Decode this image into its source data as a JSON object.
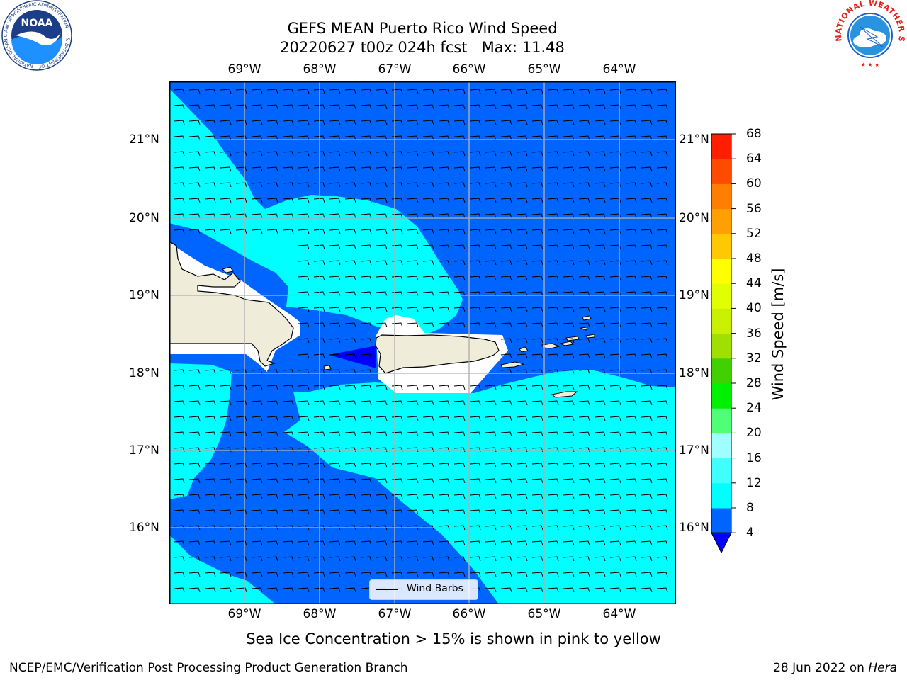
{
  "title": {
    "line1": "GEFS MEAN Puerto Rico Wind Speed",
    "line2": "20220627 t00z 024h fcst   Max: 11.48"
  },
  "longitude_labels": [
    "69°W",
    "68°W",
    "67°W",
    "66°W",
    "65°W",
    "64°W"
  ],
  "latitude_labels": [
    "21°N",
    "20°N",
    "19°N",
    "18°N",
    "17°N",
    "16°N"
  ],
  "colorbar": {
    "label": "Wind Speed [m/s]",
    "ticks": [
      "4",
      "8",
      "12",
      "16",
      "20",
      "24",
      "28",
      "32",
      "36",
      "40",
      "44",
      "48",
      "52",
      "56",
      "60",
      "64",
      "68"
    ],
    "colors": [
      "#0064ff",
      "#00ffff",
      "#40ffff",
      "#a0ffff",
      "#50ff78",
      "#00f000",
      "#40d000",
      "#a0e000",
      "#c8f000",
      "#e0ff00",
      "#ffff00",
      "#ffc800",
      "#ffa000",
      "#ff7d00",
      "#ff4b00",
      "#ff1e00"
    ],
    "under_color": "#0000ff"
  },
  "legend": {
    "label": "Wind Barbs"
  },
  "caption": "Sea Ice Concentration > 15% is shown in pink to yellow",
  "footer": {
    "left": "NCEP/EMC/Verification Post Processing Product Generation Branch",
    "right_date": "28 Jun 2022 on ",
    "right_host": "Hera"
  },
  "logos": {
    "noaa": "NOAA",
    "noaa_ring": "NATIONAL OCEANIC AND ATMOSPHERIC ADMINISTRATION · U.S. DEPARTMENT OF COMMERCE",
    "nws_ring": "NATIONAL WEATHER SERVICE"
  },
  "colors": {
    "ocean_calm": "#0064ff",
    "ocean_breezy": "#00ffff",
    "land": "#efedd9",
    "calm_pocket": "#0000ff"
  }
}
